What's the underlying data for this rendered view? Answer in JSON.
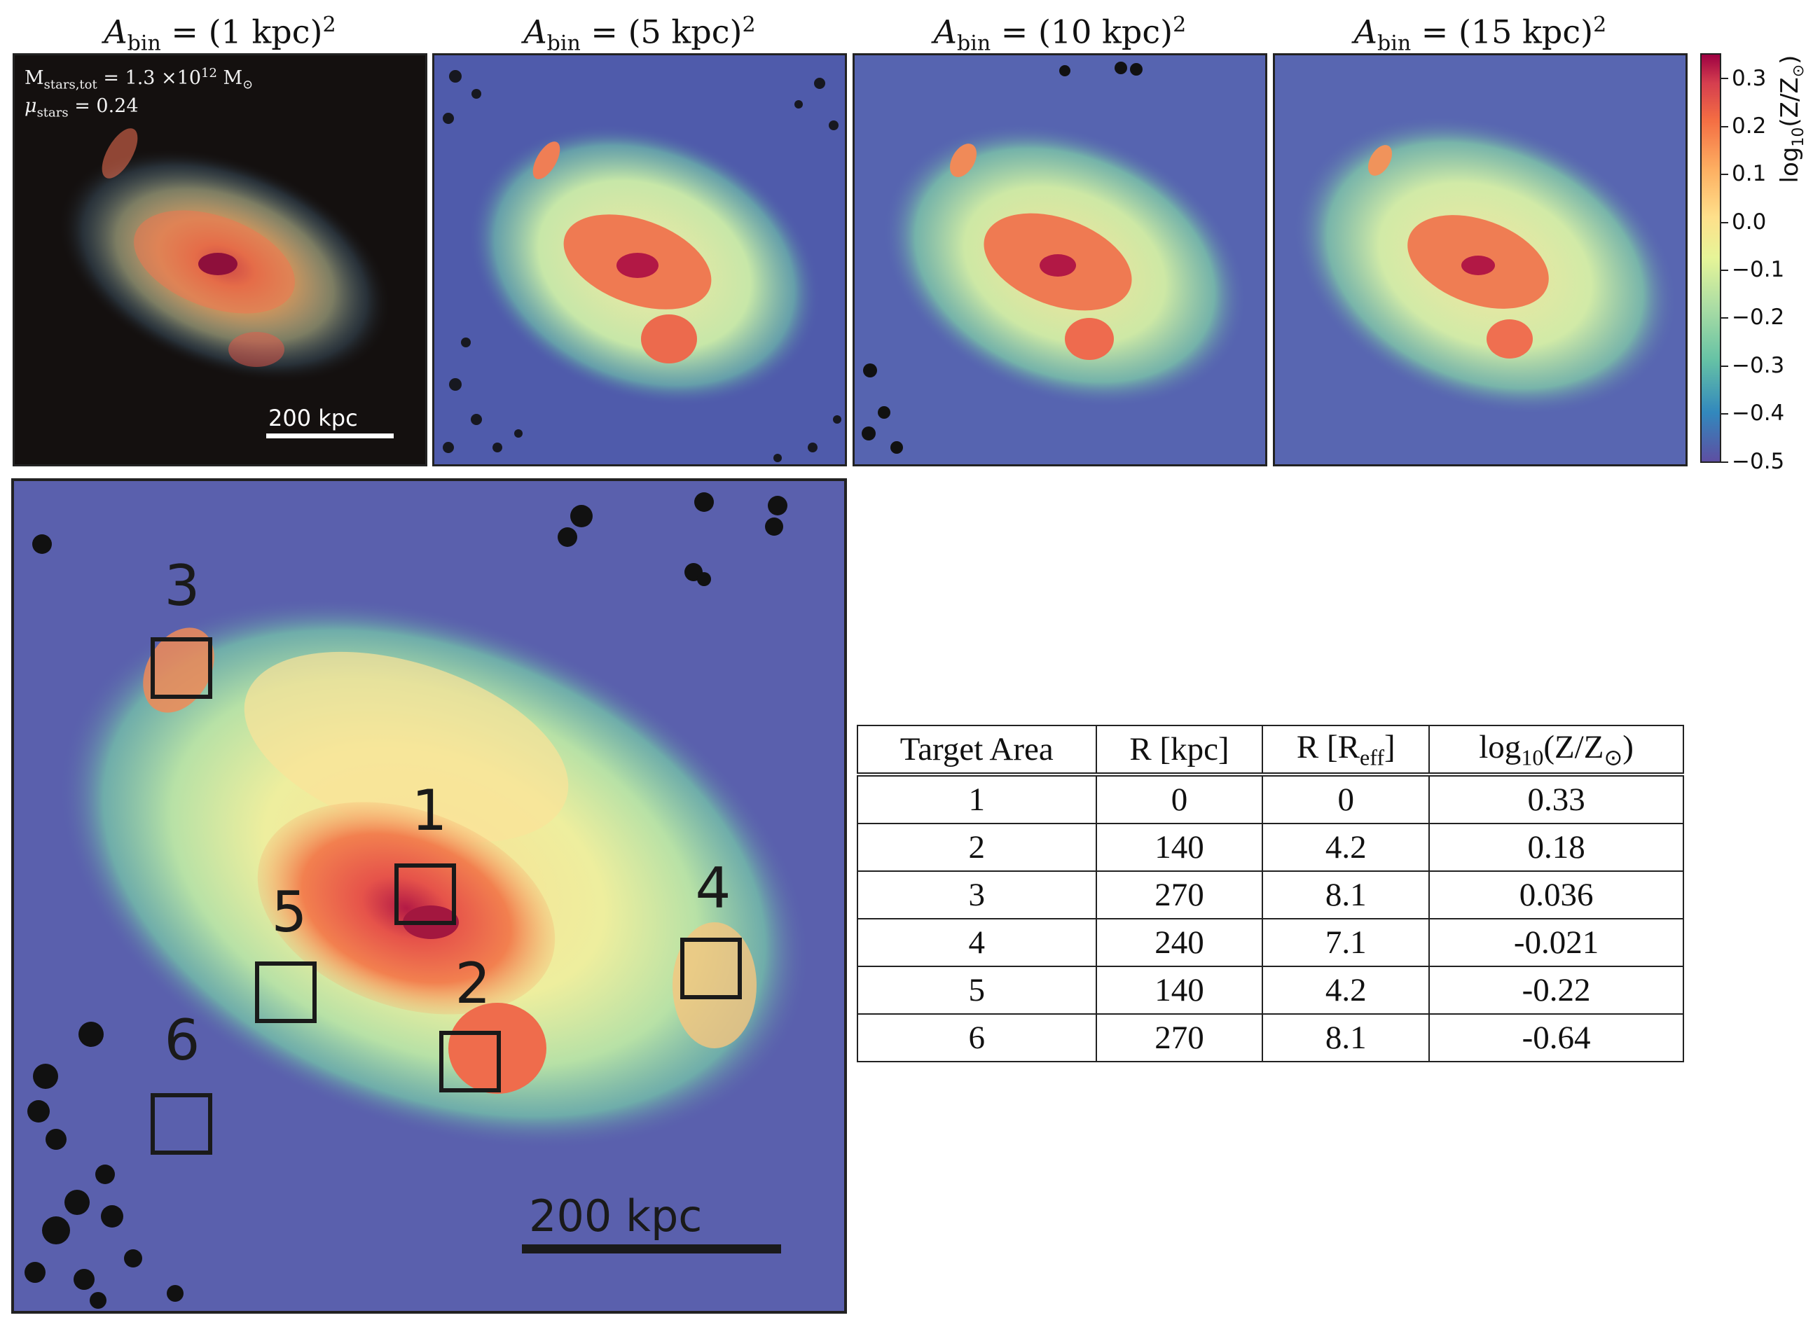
{
  "top_panels": [
    {
      "title_prefix": "A",
      "title_sub": "bin",
      "title_mid": " = (",
      "title_value": "1 kpc",
      "title_close": ")",
      "title_sup": "2"
    },
    {
      "title_prefix": "A",
      "title_sub": "bin",
      "title_mid": " = (",
      "title_value": "5 kpc",
      "title_close": ")",
      "title_sup": "2"
    },
    {
      "title_prefix": "A",
      "title_sub": "bin",
      "title_mid": " = (",
      "title_value": "10 kpc",
      "title_close": ")",
      "title_sup": "2"
    },
    {
      "title_prefix": "A",
      "title_sub": "bin",
      "title_mid": " = (",
      "title_value": "15 kpc",
      "title_close": ")",
      "title_sup": "2"
    }
  ],
  "first_panel_info": {
    "mstars_main": "M",
    "mstars_sub": "stars,tot",
    "mstars_eq": " = 1.3 ×10",
    "mstars_exp": "12",
    "mstars_unit": " M",
    "mstars_unit_sub": "⊙",
    "mu_main": "μ",
    "mu_sub": "stars",
    "mu_eq": " = 0.24"
  },
  "scale_bar_label": "200 kpc",
  "colorbar": {
    "label_main": "log",
    "label_sub": "10",
    "label_rest": "(Z/Z",
    "label_sun": "⊙",
    "label_close": ")",
    "ticks": [
      "0.3",
      "0.2",
      "0.1",
      "0.0",
      "−0.1",
      "−0.2",
      "−0.3",
      "−0.4",
      "−0.5"
    ],
    "min": -0.5,
    "max": 0.34,
    "colors": [
      "#5e4fa2",
      "#3288bd",
      "#66c2a5",
      "#abdda4",
      "#e6f598",
      "#fee08b",
      "#fdae61",
      "#f46d43",
      "#d53e4f",
      "#9e0142"
    ]
  },
  "target_areas": [
    "1",
    "2",
    "3",
    "4",
    "5",
    "6"
  ],
  "table": {
    "headers": {
      "target": "Target Area",
      "r_kpc": "R [kpc]",
      "r_eff_main": "R [R",
      "r_eff_sub": "eff",
      "r_eff_close": "]",
      "logz_main": "log",
      "logz_sub": "10",
      "logz_rest": "(Z/Z",
      "logz_sun": "⊙",
      "logz_close": ")"
    },
    "rows": [
      {
        "area": "1",
        "r_kpc": "0",
        "r_eff": "0",
        "logz": "0.33"
      },
      {
        "area": "2",
        "r_kpc": "140",
        "r_eff": "4.2",
        "logz": "0.18"
      },
      {
        "area": "3",
        "r_kpc": "270",
        "r_eff": "8.1",
        "logz": "0.036"
      },
      {
        "area": "4",
        "r_kpc": "240",
        "r_eff": "7.1",
        "logz": "-0.021"
      },
      {
        "area": "5",
        "r_kpc": "140",
        "r_eff": "4.2",
        "logz": "-0.22"
      },
      {
        "area": "6",
        "r_kpc": "270",
        "r_eff": "8.1",
        "logz": "-0.64"
      }
    ]
  }
}
